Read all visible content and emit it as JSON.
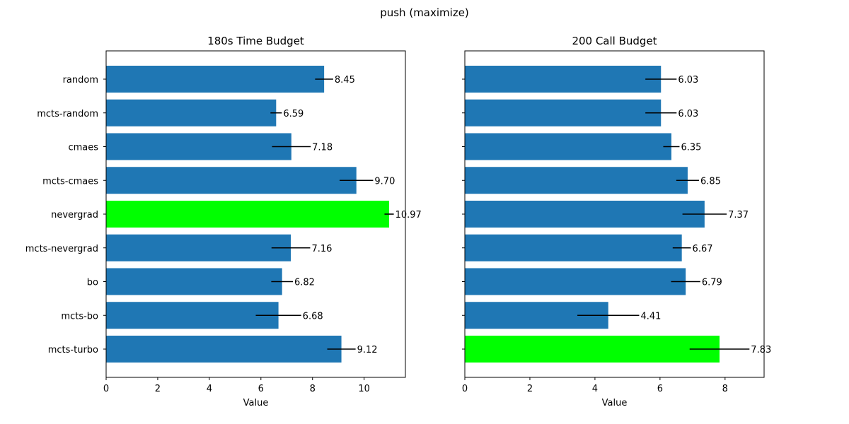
{
  "figure": {
    "suptitle": "push (maximize)"
  },
  "colors": {
    "bar": "#1f77b4",
    "best_bar": "#00ff00",
    "error_bar": "#000000"
  },
  "chart_data": [
    {
      "type": "bar",
      "orientation": "horizontal",
      "title": "180s Time Budget",
      "xlabel": "Value",
      "ylabel": "",
      "xlim": [
        0,
        11.6
      ],
      "xticks": [
        0,
        2,
        4,
        6,
        8,
        10
      ],
      "grid": false,
      "categories": [
        "random",
        "mcts-random",
        "cmaes",
        "mcts-cmaes",
        "nevergrad",
        "mcts-nevergrad",
        "bo",
        "mcts-bo",
        "mcts-turbo"
      ],
      "values": [
        8.45,
        6.59,
        7.18,
        9.7,
        10.97,
        7.16,
        6.82,
        6.68,
        9.12
      ],
      "value_labels": [
        "8.45",
        "6.59",
        "7.18",
        "9.70",
        "10.97",
        "7.16",
        "6.82",
        "6.68",
        "9.12"
      ],
      "errors": [
        0.35,
        0.22,
        0.75,
        0.65,
        0.18,
        0.75,
        0.42,
        0.88,
        0.55
      ],
      "highlight": "nevergrad"
    },
    {
      "type": "bar",
      "orientation": "horizontal",
      "title": "200 Call Budget",
      "xlabel": "Value",
      "ylabel": "",
      "xlim": [
        0,
        9.2
      ],
      "xticks": [
        0,
        2,
        4,
        6,
        8
      ],
      "grid": false,
      "categories": [
        "random",
        "mcts-random",
        "cmaes",
        "mcts-cmaes",
        "nevergrad",
        "mcts-nevergrad",
        "bo",
        "mcts-bo",
        "mcts-turbo"
      ],
      "values": [
        6.03,
        6.03,
        6.35,
        6.85,
        7.37,
        6.67,
        6.79,
        4.41,
        7.83
      ],
      "value_labels": [
        "6.03",
        "6.03",
        "6.35",
        "6.85",
        "7.37",
        "6.67",
        "6.79",
        "4.41",
        "7.83"
      ],
      "errors": [
        0.48,
        0.48,
        0.25,
        0.35,
        0.68,
        0.28,
        0.45,
        0.95,
        0.92
      ],
      "highlight": "mcts-turbo"
    }
  ]
}
